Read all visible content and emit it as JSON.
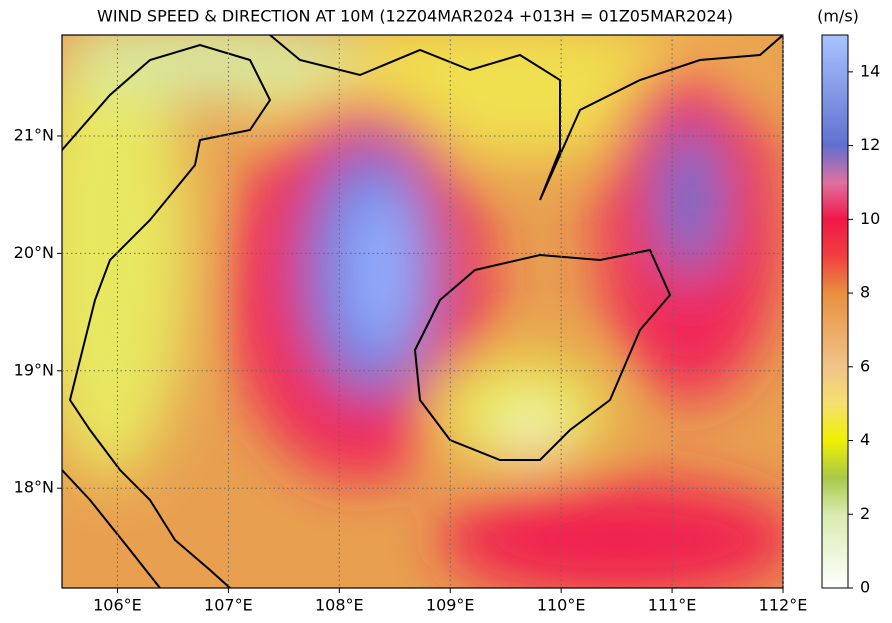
{
  "map": {
    "title": "WIND SPEED & DIRECTION AT 10M (12Z04MAR2024 +013H = 01Z05MAR2024)",
    "units": "(m/s)",
    "xlim": [
      105.5,
      112
    ],
    "ylim": [
      17.15,
      21.86
    ],
    "xticks": [
      {
        "value": 106,
        "label": "106°E"
      },
      {
        "value": 107,
        "label": "107°E"
      },
      {
        "value": 108,
        "label": "108°E"
      },
      {
        "value": 109,
        "label": "109°E"
      },
      {
        "value": 110,
        "label": "110°E"
      },
      {
        "value": 111,
        "label": "111°E"
      },
      {
        "value": 112,
        "label": "112°E"
      }
    ],
    "yticks": [
      {
        "value": 18,
        "label": "18°N"
      },
      {
        "value": 19,
        "label": "19°N"
      },
      {
        "value": 20,
        "label": "20°N"
      },
      {
        "value": 21,
        "label": "21°N"
      }
    ],
    "grid": true,
    "colorbar": {
      "lim": [
        0,
        15
      ],
      "ticks": [
        0,
        2,
        4,
        6,
        8,
        10,
        12,
        14
      ]
    }
  }
}
